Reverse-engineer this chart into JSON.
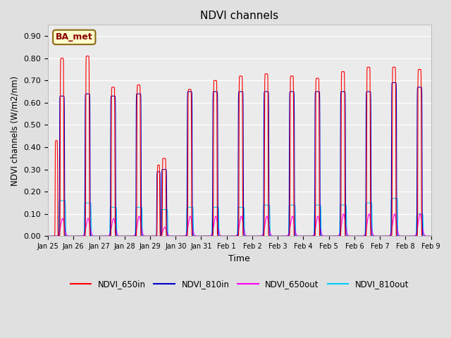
{
  "title": "NDVI channels",
  "xlabel": "Time",
  "ylabel": "NDVI channels (W/m2/nm)",
  "ylim": [
    0.0,
    0.95
  ],
  "yticks": [
    0.0,
    0.1,
    0.2,
    0.3,
    0.4,
    0.5,
    0.6,
    0.7,
    0.8,
    0.9
  ],
  "bg_color": "#e0e0e0",
  "plot_bg": "#ebebeb",
  "legend_labels": [
    "NDVI_650in",
    "NDVI_810in",
    "NDVI_650out",
    "NDVI_810out"
  ],
  "legend_colors": [
    "#ff0000",
    "#0000cc",
    "#ff00ff",
    "#00ccff"
  ],
  "annotation_text": "BA_met",
  "annotation_color": "#8b0000",
  "annotation_bg": "#ffffcc",
  "line_width": 0.8,
  "x_tick_labels": [
    "Jan 25",
    "Jan 26",
    "Jan 27",
    "Jan 28",
    "Jan 29",
    "Jan 30",
    "Jan 31",
    "Feb 1",
    "Feb 2",
    "Feb 3",
    "Feb 4",
    "Feb 5",
    "Feb 6",
    "Feb 7",
    "Feb 8",
    "Feb 9"
  ],
  "num_days": 16,
  "day_peaks_650in": [
    0.8,
    0.81,
    0.67,
    0.68,
    0.35,
    0.66,
    0.7,
    0.72,
    0.73,
    0.72,
    0.71,
    0.74,
    0.76,
    0.76,
    0.75,
    0.0
  ],
  "day_secondary_650in": [
    0.43,
    0.0,
    0.0,
    0.0,
    0.32,
    0.0,
    0.0,
    0.0,
    0.0,
    0.0,
    0.0,
    0.0,
    0.0,
    0.0,
    0.0,
    0.0
  ],
  "day_peaks_810in": [
    0.63,
    0.64,
    0.63,
    0.64,
    0.3,
    0.65,
    0.65,
    0.65,
    0.65,
    0.65,
    0.65,
    0.65,
    0.65,
    0.69,
    0.67,
    0.0
  ],
  "day_secondary_810in": [
    0.0,
    0.0,
    0.0,
    0.0,
    0.29,
    0.0,
    0.0,
    0.0,
    0.0,
    0.0,
    0.0,
    0.0,
    0.0,
    0.0,
    0.0,
    0.0
  ],
  "day_peaks_650out": [
    0.08,
    0.08,
    0.08,
    0.09,
    0.04,
    0.09,
    0.09,
    0.09,
    0.09,
    0.09,
    0.09,
    0.1,
    0.1,
    0.1,
    0.1,
    0.0
  ],
  "day_peaks_810out": [
    0.16,
    0.15,
    0.13,
    0.13,
    0.12,
    0.13,
    0.13,
    0.13,
    0.14,
    0.14,
    0.14,
    0.14,
    0.15,
    0.17,
    0.1,
    0.0
  ]
}
